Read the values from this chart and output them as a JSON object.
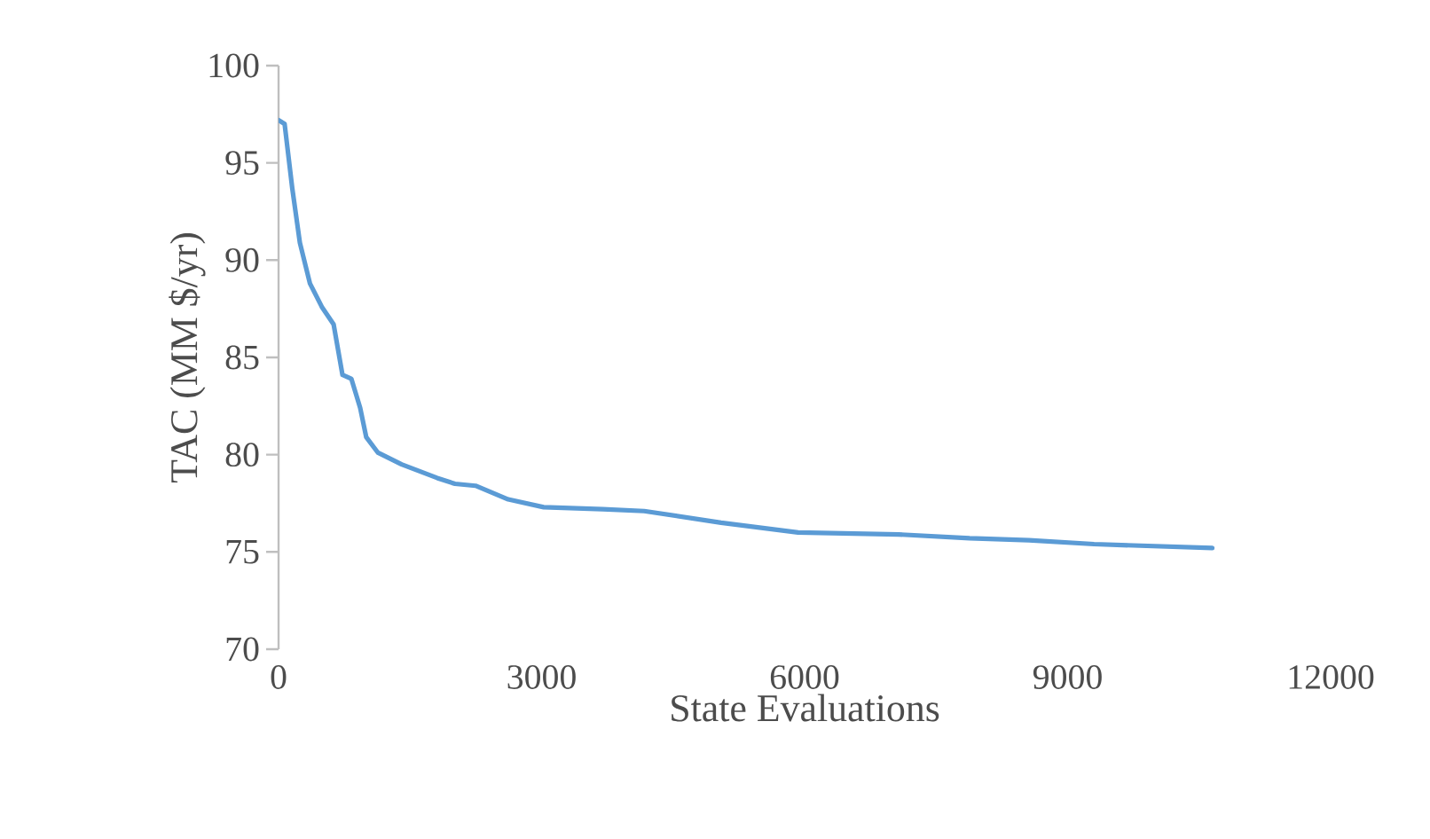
{
  "chart_data": {
    "type": "line",
    "xlabel": "State Evaluations",
    "ylabel": "TAC (MM $/yr)",
    "x": [
      0,
      69,
      156,
      243,
      358,
      493,
      628,
      729,
      830,
      931,
      1000,
      1134,
      1404,
      1809,
      2012,
      2247,
      2619,
      3024,
      3698,
      4170,
      5047,
      5925,
      7072,
      7882,
      8559,
      9301,
      10650
    ],
    "values": [
      97.2,
      97.0,
      93.7,
      90.9,
      88.8,
      87.6,
      86.7,
      84.1,
      83.9,
      82.4,
      80.9,
      80.1,
      79.5,
      78.8,
      78.5,
      78.4,
      77.7,
      77.3,
      77.2,
      77.1,
      76.5,
      76.0,
      75.9,
      75.7,
      75.6,
      75.4,
      75.2
    ],
    "color": "#5b9bd5",
    "xlim": [
      0,
      12000
    ],
    "xticks": [
      0,
      3000,
      6000,
      9000,
      12000
    ],
    "ylim": [
      70,
      100
    ],
    "yticks": [
      70,
      75,
      80,
      85,
      90,
      95,
      100
    ],
    "grid": false
  }
}
